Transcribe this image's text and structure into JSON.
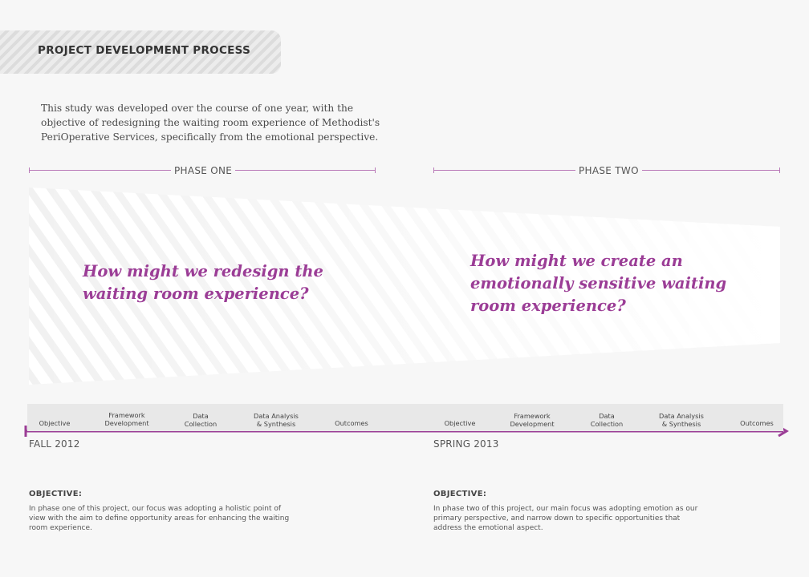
{
  "header": {
    "title": "PROJECT DEVELOPMENT PROCESS"
  },
  "intro": "This study was developed over the course of one year, with the objective of redesigning the waiting room experience of Methodist's PeriOperative Services, specifically from the emotional perspective.",
  "phases": [
    {
      "label": "PHASE ONE",
      "question": "How might we redesign the waiting room experience?",
      "season": "FALL 2012",
      "steps": [
        "Objective",
        "Framework Development",
        "Data Collection",
        "Data Analysis & Synthesis",
        "Outcomes"
      ],
      "objective_heading": "OBJECTIVE:",
      "objective_text": "In phase one of this project, our focus was adopting a holistic point of view with the aim to define opportunity areas for enhancing the waiting room experience."
    },
    {
      "label": "PHASE TWO",
      "question": "How might we create an emotionally sensitive waiting room experience?",
      "season": "SPRING 2013",
      "steps": [
        "Objective",
        "Framework Development",
        "Data Collection",
        "Data Analysis & Synthesis",
        "Outcomes"
      ],
      "objective_heading": "OBJECTIVE:",
      "objective_text": "In phase two of this project, our main focus was adopting emotion as our primary perspective, and narrow down to specific opportunities that address the emotional aspect."
    }
  ],
  "colors": {
    "accent": "#9b3d96",
    "rule": "#b97ab8"
  }
}
